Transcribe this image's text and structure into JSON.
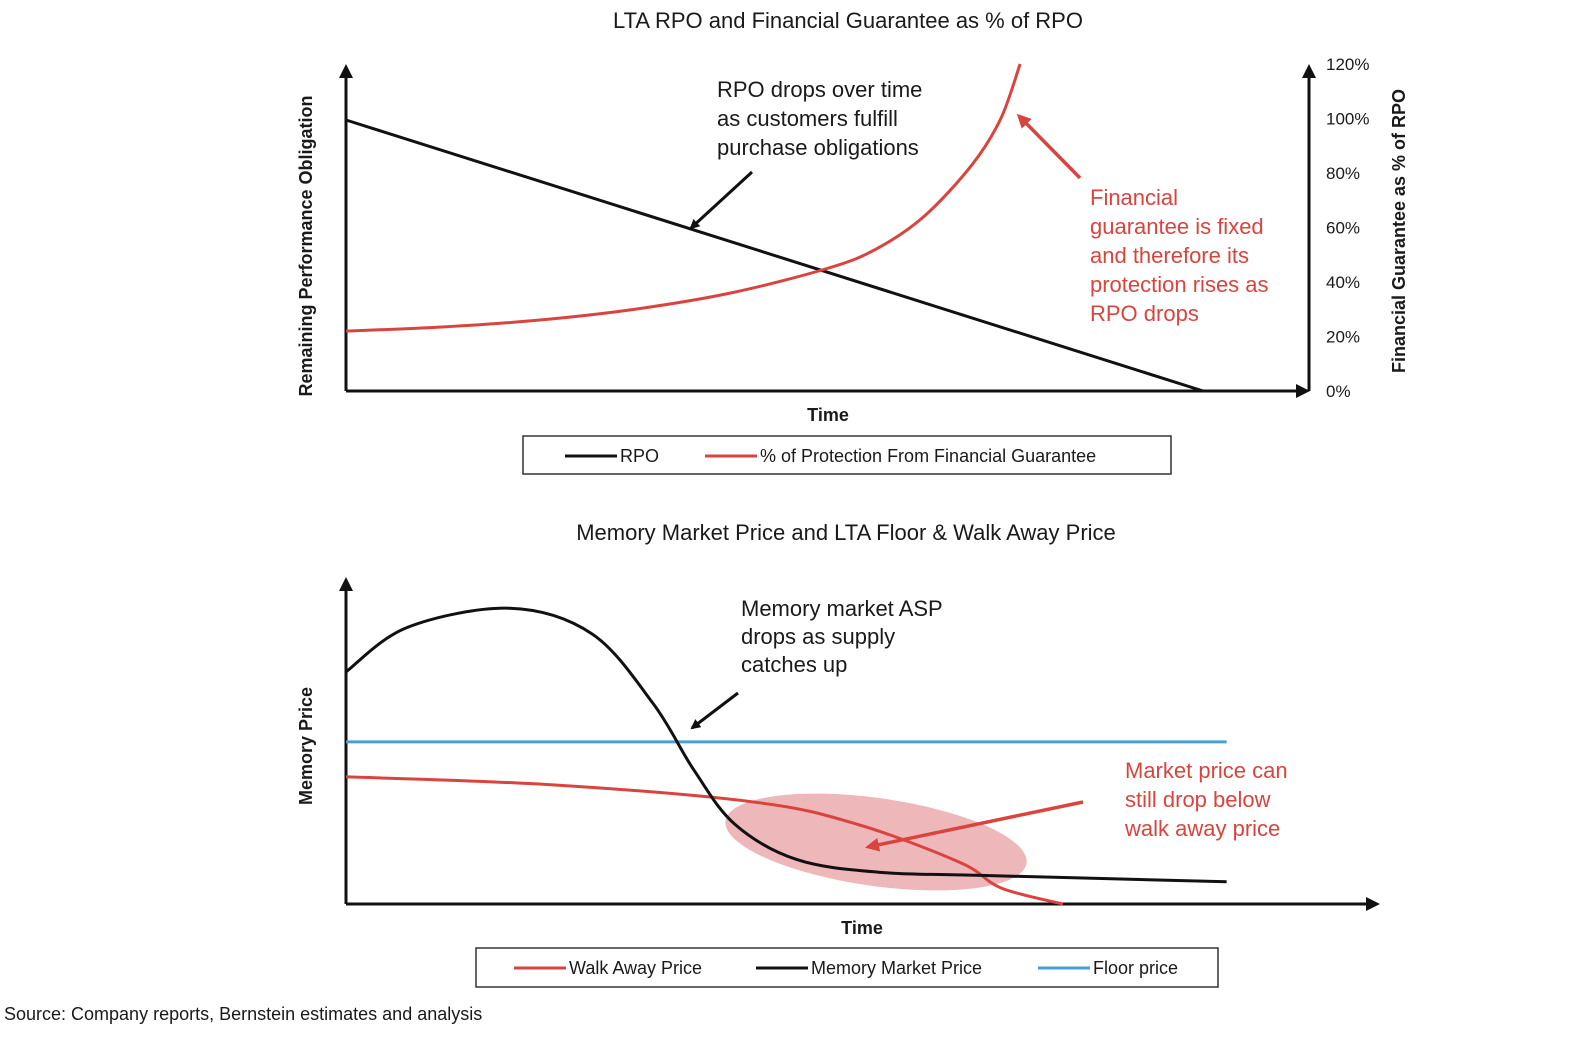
{
  "chart_data": [
    {
      "type": "line",
      "title": "LTA RPO and Financial Guarantee as % of RPO",
      "xlabel": "Time",
      "ylabel_left": "Remaining Performance Obligation",
      "ylabel_right": "Financial Guarantee as % of RPO",
      "y_right_ticks": [
        "0%",
        "20%",
        "40%",
        "60%",
        "80%",
        "100%",
        "120%"
      ],
      "y_right_lim": [
        0,
        120
      ],
      "series": [
        {
          "name": "RPO",
          "color": "#111111",
          "axis": "left",
          "x": [
            0,
            0.89
          ],
          "y": [
            100,
            0
          ]
        },
        {
          "name": "% of Protection From Financial Guarantee",
          "color": "#d9443e",
          "axis": "right",
          "x": [
            0,
            0.1,
            0.2,
            0.3,
            0.4,
            0.5,
            0.55,
            0.6,
            0.65,
            0.68,
            0.7
          ],
          "y": [
            22,
            23.5,
            26,
            30,
            36,
            45,
            52,
            64,
            83,
            100,
            120
          ]
        }
      ],
      "annotations": [
        {
          "text": [
            "RPO drops over time",
            "as customers fulfill",
            "purchase obligations"
          ],
          "color": "#111111"
        },
        {
          "text": [
            "Financial",
            "guarantee is fixed",
            "and therefore its",
            "protection rises as",
            "RPO drops"
          ],
          "color": "#d9443e"
        }
      ],
      "legend_position": "bottom"
    },
    {
      "type": "line",
      "title": "Memory Market Price and LTA Floor & Walk Away Price",
      "xlabel": "Time",
      "ylabel": "Memory Price",
      "series": [
        {
          "name": "Walk Away Price",
          "color": "#d9443e",
          "x": [
            0,
            0.2,
            0.4,
            0.5,
            0.6,
            0.64,
            0.7
          ],
          "y": [
            40,
            37.5,
            32,
            25,
            13,
            5,
            0
          ]
        },
        {
          "name": "Memory Market Price",
          "color": "#111111",
          "x": [
            0,
            0.06,
            0.16,
            0.24,
            0.3,
            0.34,
            0.38,
            0.44,
            0.52,
            0.62,
            0.86
          ],
          "y": [
            73,
            87,
            93,
            85,
            63,
            42,
            25,
            14,
            10,
            9,
            7
          ]
        },
        {
          "name": "Floor price",
          "color": "#4a9fd0",
          "x": [
            0,
            0.86
          ],
          "y": [
            51,
            51
          ]
        }
      ],
      "annotations": [
        {
          "text": [
            "Memory market ASP",
            "drops as supply",
            "catches up"
          ],
          "color": "#111111"
        },
        {
          "text": [
            "Market price can",
            "still drop below",
            "walk away price"
          ],
          "color": "#d9443e"
        }
      ],
      "legend_position": "bottom"
    }
  ],
  "source": "Source: Company reports, Bernstein estimates and analysis"
}
